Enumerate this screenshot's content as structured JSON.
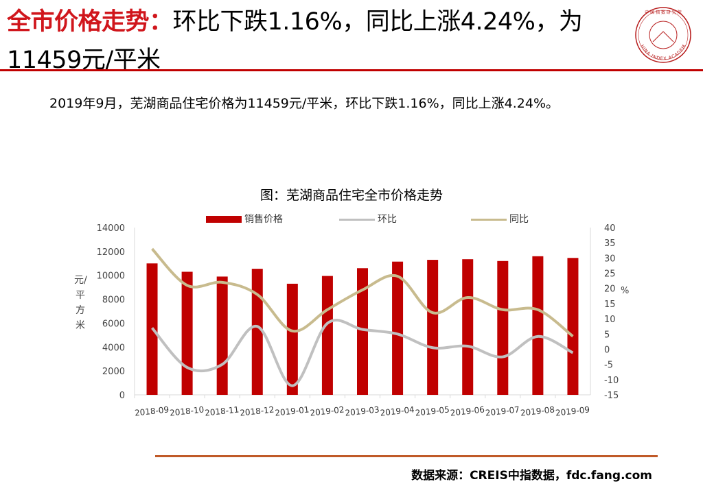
{
  "header": {
    "title_highlight": "全市价格走势：",
    "title_rest": "环比下跌1.16%，同比上涨4.24%，为11459元/平米"
  },
  "subtitle": "2019年9月，芜湖商品住宅价格为11459元/平米，环比下跌1.16%，同比上涨4.24%。",
  "footer": {
    "source": "数据来源：CREIS中指数据，fdc.fang.com"
  },
  "colors": {
    "accent": "#d0161c",
    "bar": "#c00000",
    "mom": "#c0c0c0",
    "yoy": "#c8bb8e"
  },
  "chart_data": {
    "type": "bar",
    "title": "图：芜湖商品住宅全市价格走势",
    "categories": [
      "2018-09",
      "2018-10",
      "2018-11",
      "2018-12",
      "2019-01",
      "2019-02",
      "2019-03",
      "2019-04",
      "2019-05",
      "2019-06",
      "2019-07",
      "2019-08",
      "2019-09"
    ],
    "series": [
      {
        "name": "销售价格",
        "type": "bar",
        "axis": "left",
        "values": [
          11000,
          10300,
          9900,
          10550,
          9300,
          9950,
          10600,
          11150,
          11300,
          11350,
          11200,
          11600,
          11459
        ]
      },
      {
        "name": "环比",
        "type": "line",
        "axis": "right",
        "values": [
          7,
          -6,
          -5,
          7.5,
          -12,
          8.5,
          6.5,
          5,
          0.5,
          1,
          -2.5,
          4.2,
          -1.16
        ]
      },
      {
        "name": "同比",
        "type": "line",
        "axis": "right",
        "values": [
          33,
          21,
          22,
          18,
          6,
          13,
          19.5,
          24,
          12,
          17,
          13,
          13,
          4.24
        ]
      }
    ],
    "ylabel": "元/平方米",
    "y2label": "%",
    "ylim": [
      0,
      14000
    ],
    "y2lim": [
      -15,
      40
    ],
    "yticks": [
      0,
      2000,
      4000,
      6000,
      8000,
      10000,
      12000,
      14000
    ],
    "y2ticks": [
      -15,
      -10,
      -5,
      0,
      5,
      10,
      15,
      20,
      25,
      30,
      35,
      40
    ],
    "legend_position": "top",
    "grid": false
  }
}
